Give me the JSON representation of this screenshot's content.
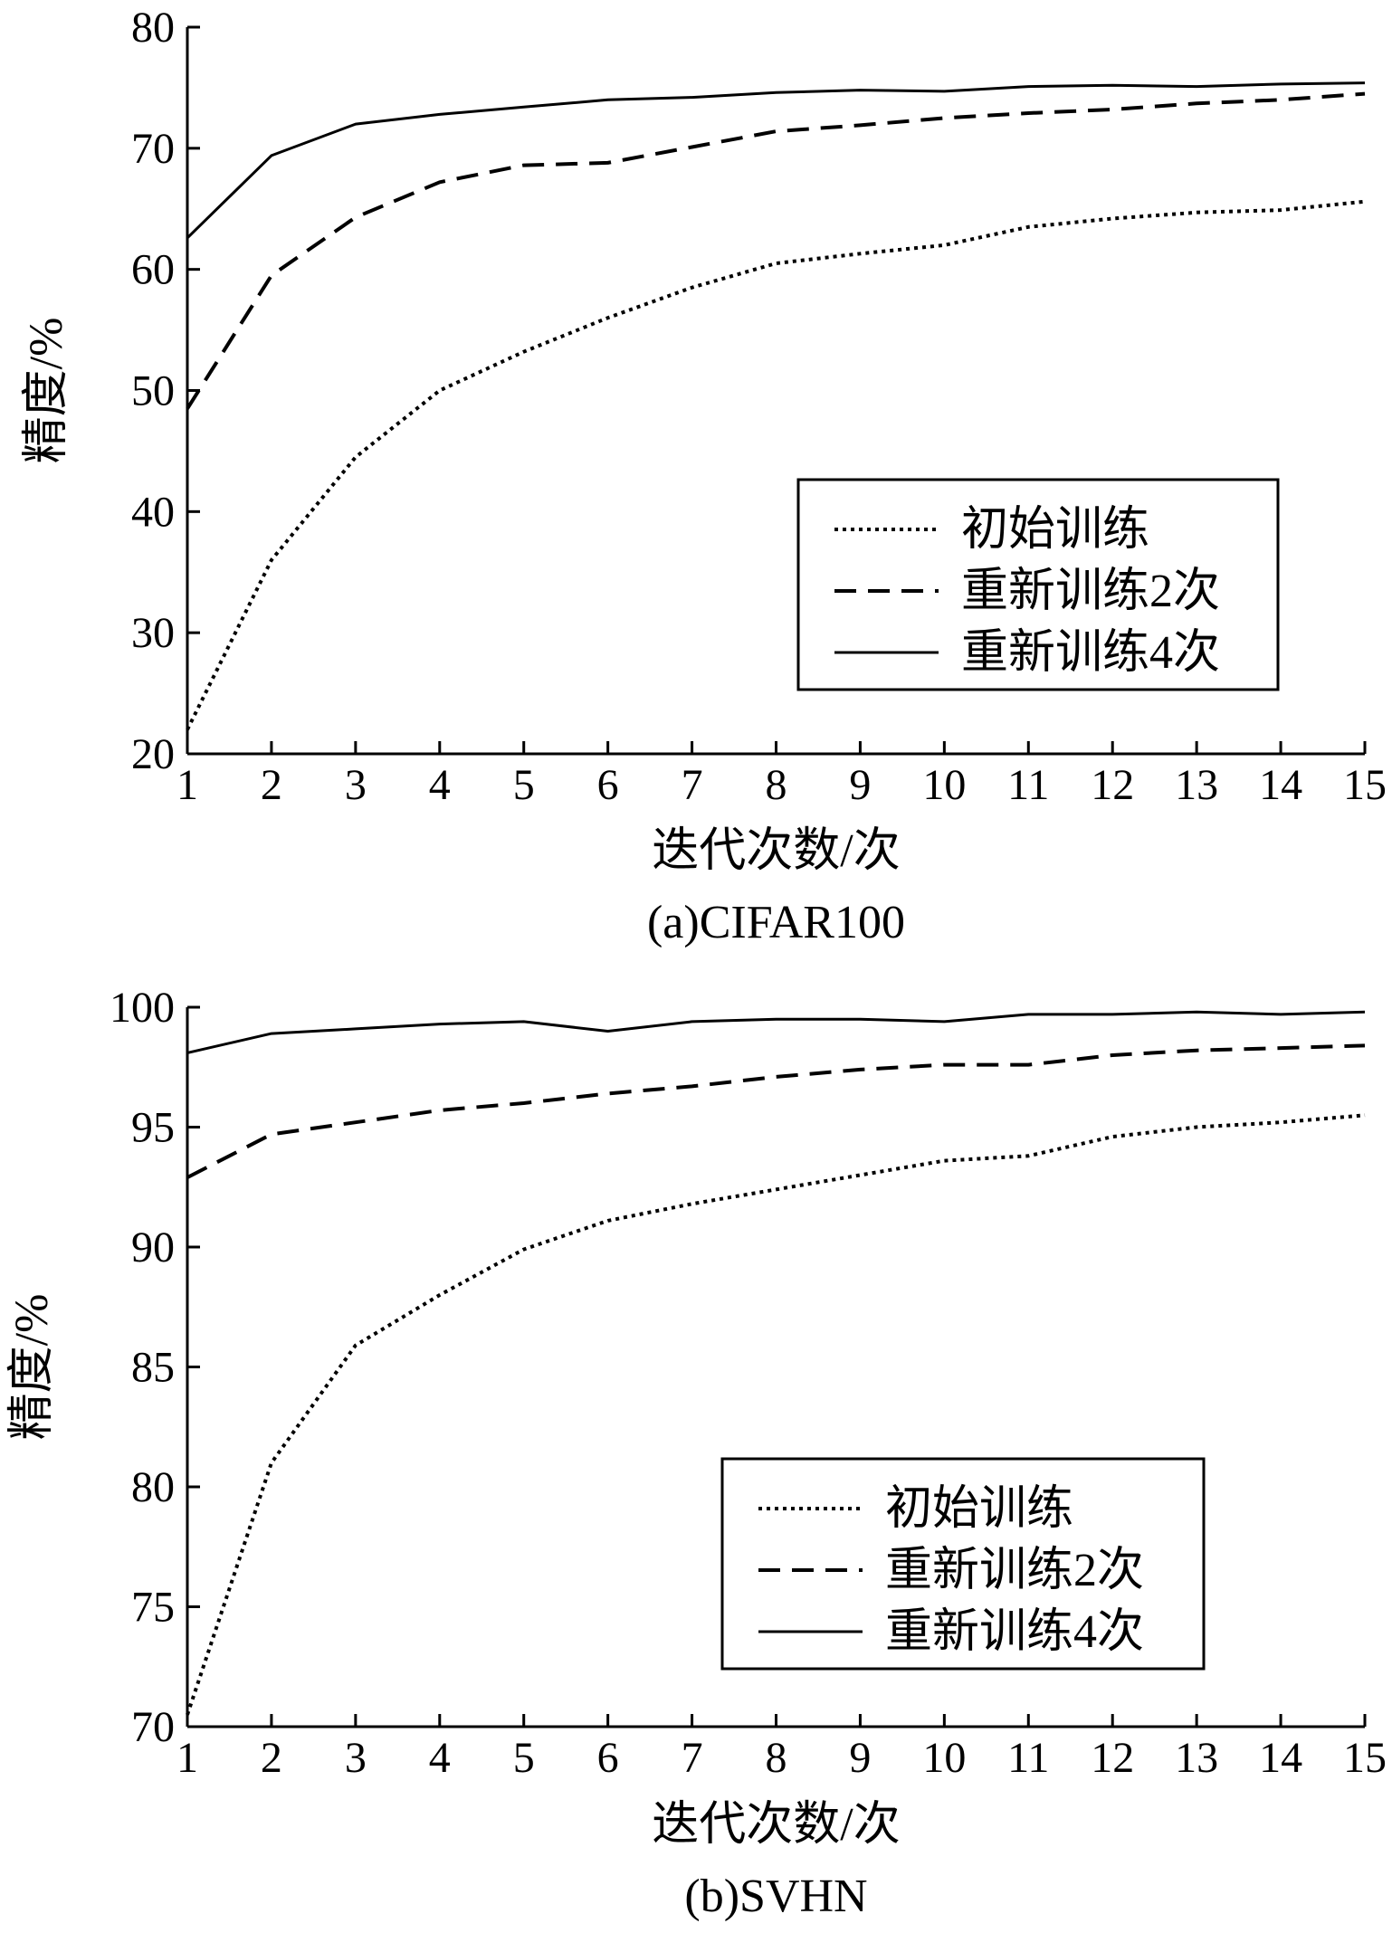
{
  "chart_data": [
    {
      "type": "line",
      "caption": "(a)CIFAR100",
      "xlabel": "迭代次数/次",
      "ylabel": "精度/%",
      "xlim": [
        1,
        15
      ],
      "ylim": [
        20,
        80
      ],
      "x": [
        1,
        2,
        3,
        4,
        5,
        6,
        7,
        8,
        9,
        10,
        11,
        12,
        13,
        14,
        15
      ],
      "xticks": [
        1,
        2,
        3,
        4,
        5,
        6,
        7,
        8,
        9,
        10,
        11,
        12,
        13,
        14,
        15
      ],
      "yticks": [
        20,
        30,
        40,
        50,
        60,
        70,
        80
      ],
      "grid": false,
      "legend_position": "right",
      "series": [
        {
          "name": "初始训练",
          "style": "dotted",
          "values": [
            22,
            36,
            44.5,
            50,
            53.2,
            56,
            58.5,
            60.5,
            61.3,
            62,
            63.5,
            64.2,
            64.7,
            64.9,
            65.6
          ]
        },
        {
          "name": "重新训练2次",
          "style": "dashed",
          "values": [
            48.5,
            59.5,
            64.3,
            67.2,
            68.6,
            68.8,
            70.1,
            71.4,
            71.9,
            72.5,
            72.9,
            73.2,
            73.7,
            74,
            74.5
          ]
        },
        {
          "name": "重新训练4次",
          "style": "solid",
          "values": [
            62.6,
            69.4,
            72,
            72.8,
            73.4,
            74,
            74.2,
            74.6,
            74.8,
            74.7,
            75.1,
            75.2,
            75.1,
            75.3,
            75.4
          ]
        }
      ]
    },
    {
      "type": "line",
      "caption": "(b)SVHN",
      "xlabel": "迭代次数/次",
      "ylabel": "精度/%",
      "xlim": [
        1,
        15
      ],
      "ylim": [
        70,
        100
      ],
      "x": [
        1,
        2,
        3,
        4,
        5,
        6,
        7,
        8,
        9,
        10,
        11,
        12,
        13,
        14,
        15
      ],
      "xticks": [
        1,
        2,
        3,
        4,
        5,
        6,
        7,
        8,
        9,
        10,
        11,
        12,
        13,
        14,
        15
      ],
      "yticks": [
        70,
        75,
        80,
        85,
        90,
        95,
        100
      ],
      "grid": false,
      "legend_position": "bottom-right",
      "series": [
        {
          "name": "初始训练",
          "style": "dotted",
          "values": [
            70.5,
            81,
            85.9,
            88,
            89.9,
            91.1,
            91.8,
            92.4,
            93,
            93.6,
            93.8,
            94.6,
            95,
            95.2,
            95.5
          ]
        },
        {
          "name": "重新训练2次",
          "style": "dashed",
          "values": [
            92.9,
            94.7,
            95.2,
            95.7,
            96,
            96.4,
            96.7,
            97.1,
            97.4,
            97.6,
            97.6,
            98,
            98.2,
            98.3,
            98.4
          ]
        },
        {
          "name": "重新训练4次",
          "style": "solid",
          "values": [
            98.1,
            98.9,
            99.1,
            99.3,
            99.4,
            99,
            99.4,
            99.5,
            99.5,
            99.4,
            99.7,
            99.7,
            99.8,
            99.7,
            99.8
          ]
        }
      ]
    }
  ]
}
